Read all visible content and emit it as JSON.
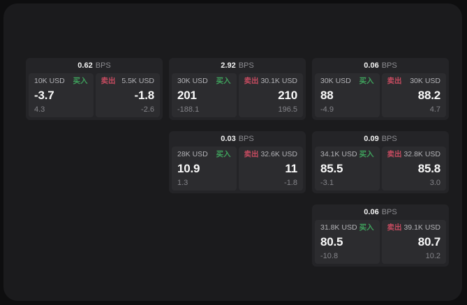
{
  "labels": {
    "bps_unit": "BPS",
    "buy": "买入",
    "sell": "卖出"
  },
  "colors": {
    "buy": "#3fa15c",
    "sell": "#c64b60",
    "panel_background": "#1b1b1d",
    "card_background": "#242427",
    "pane_background": "#2c2c2f"
  },
  "cards": [
    {
      "bps": "0.62",
      "col": 1,
      "row": 1,
      "buy": {
        "amount": "10K USD",
        "value": "-3.7",
        "delta": "4.3"
      },
      "sell": {
        "amount": "5.5K USD",
        "value": "-1.8",
        "delta": "-2.6"
      }
    },
    {
      "bps": "2.92",
      "col": 2,
      "row": 1,
      "buy": {
        "amount": "30K USD",
        "value": "201",
        "delta": "-188.1"
      },
      "sell": {
        "amount": "30.1K USD",
        "value": "210",
        "delta": "196.5"
      }
    },
    {
      "bps": "0.06",
      "col": 3,
      "row": 1,
      "buy": {
        "amount": "30K USD",
        "value": "88",
        "delta": "-4.9"
      },
      "sell": {
        "amount": "30K USD",
        "value": "88.2",
        "delta": "4.7"
      }
    },
    {
      "bps": "0.03",
      "col": 2,
      "row": 2,
      "buy": {
        "amount": "28K USD",
        "value": "10.9",
        "delta": "1.3"
      },
      "sell": {
        "amount": "32.6K USD",
        "value": "11",
        "delta": "-1.8"
      }
    },
    {
      "bps": "0.09",
      "col": 3,
      "row": 2,
      "buy": {
        "amount": "34.1K USD",
        "value": "85.5",
        "delta": "-3.1"
      },
      "sell": {
        "amount": "32.8K USD",
        "value": "85.8",
        "delta": "3.0"
      }
    },
    {
      "bps": "0.06",
      "col": 3,
      "row": 3,
      "buy": {
        "amount": "31.8K USD",
        "value": "80.5",
        "delta": "-10.8"
      },
      "sell": {
        "amount": "39.1K USD",
        "value": "80.7",
        "delta": "10.2"
      }
    }
  ]
}
